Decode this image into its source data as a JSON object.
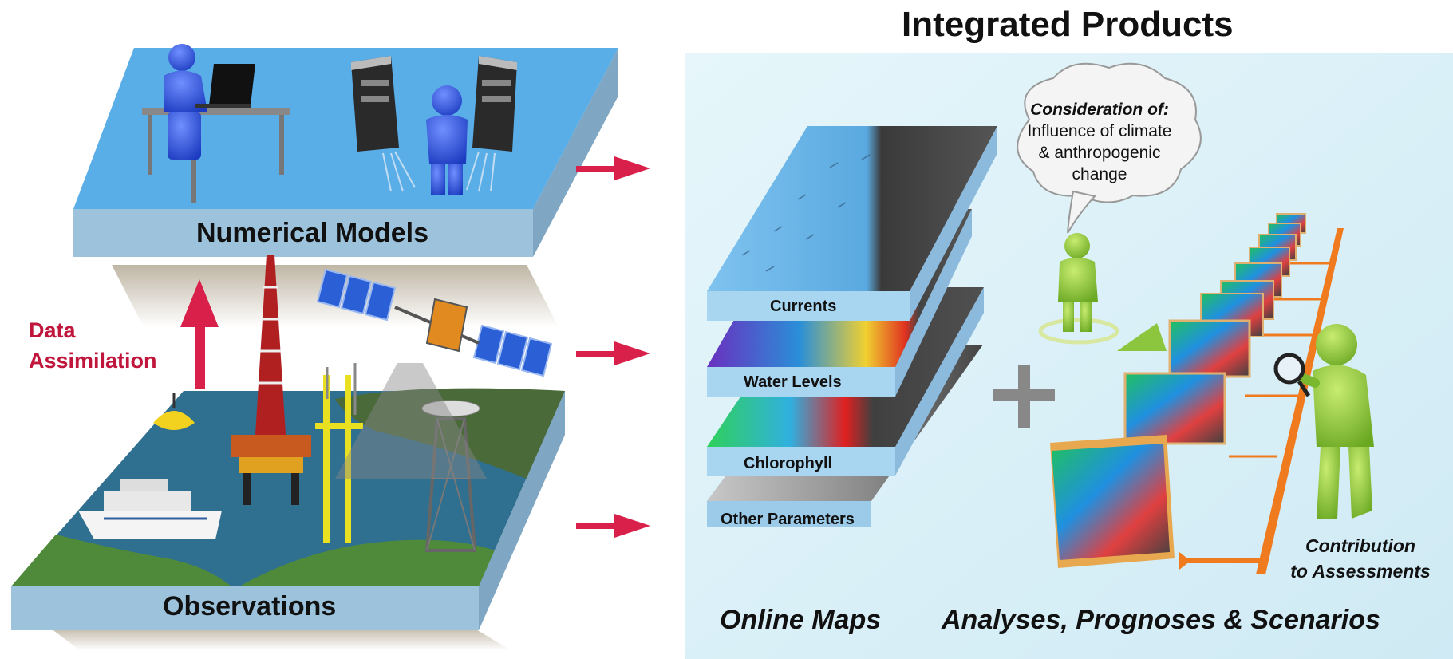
{
  "title": "Integrated Products",
  "numerical_models": {
    "label": "Numerical Models"
  },
  "observations": {
    "label": "Observations"
  },
  "data_assimilation": {
    "line1": "Data",
    "line2": "Assimilation"
  },
  "map_layers": [
    {
      "label": "Currents"
    },
    {
      "label": "Water Levels"
    },
    {
      "label": "Chlorophyll"
    },
    {
      "label": "Other Parameters"
    }
  ],
  "thought_bubble": {
    "heading": "Consideration of:",
    "line1": "Influence of climate",
    "line2": "& anthropogenic",
    "line3": "change"
  },
  "contribution": {
    "line1": "Contribution",
    "line2": "to Assessments"
  },
  "bottom_labels": {
    "online_maps": "Online Maps",
    "analyses": "Analyses, Prognoses & Scenarios"
  },
  "colors": {
    "platform_top": "#5aaee8",
    "platform_side": "#9cc2dc",
    "arrow_red": "#d8204a",
    "panel_bg": "#dff3f9",
    "orange": "#f07a1e",
    "figure_blue": "#2d55d6",
    "figure_green": "#8cc63f",
    "sea": "#2f6f8f",
    "land": "#4f8a3a"
  }
}
